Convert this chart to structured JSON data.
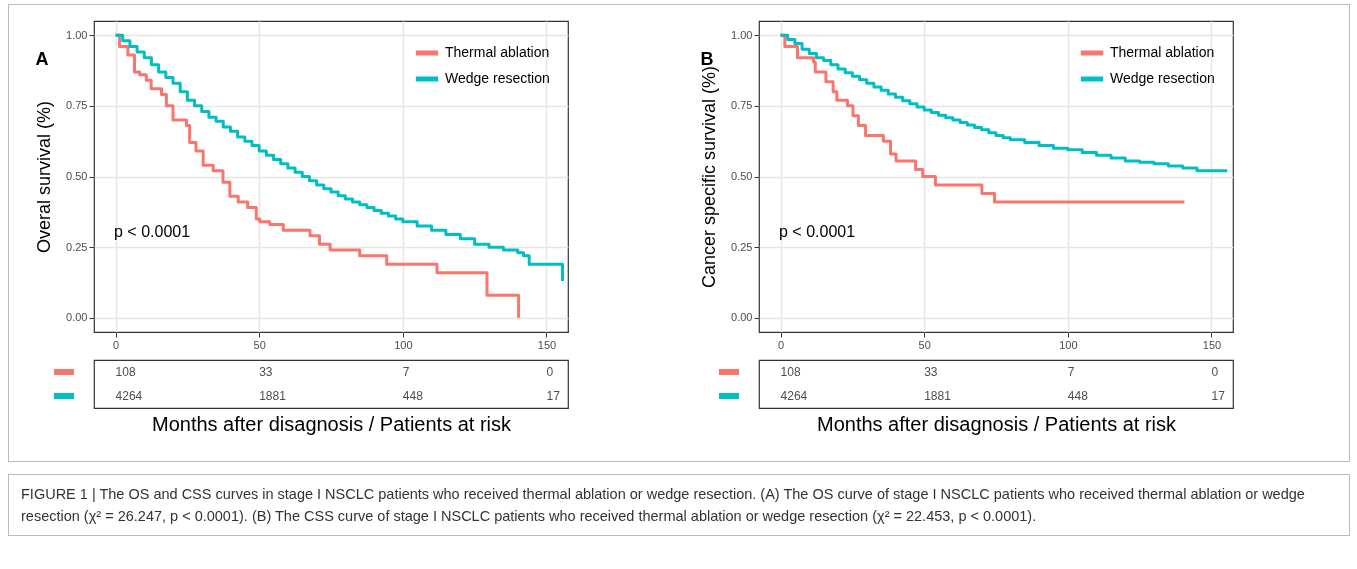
{
  "chart_data": [
    {
      "type": "step",
      "title": "A",
      "xlabel": "Months after disagnosis / Patients at risk",
      "ylabel": "Overal survival (%)",
      "xlim": [
        -7.5,
        157.5
      ],
      "ylim": [
        -0.05,
        1.05
      ],
      "xticks": [
        0,
        50,
        100,
        150
      ],
      "yticks": [
        {
          "value": 0,
          "label": "0.00"
        },
        {
          "value": 0.25,
          "label": "0.25"
        },
        {
          "value": 0.5,
          "label": "0.50"
        },
        {
          "value": 0.75,
          "label": "0.75"
        },
        {
          "value": 1,
          "label": "1.00"
        }
      ],
      "grid": true,
      "legend": "top right",
      "line_style": "solid",
      "series": [
        {
          "name": "Thermal ablation",
          "color": "#f8766d",
          "x": [
            0,
            1.4,
            4.3,
            6.6,
            8.4,
            10.7,
            12.4,
            16,
            17.7,
            20,
            24.7,
            25.8,
            28,
            30.5,
            34,
            37.4,
            39.8,
            42.7,
            46,
            49,
            50.2,
            53.7,
            58.4,
            67.7,
            71,
            74.7,
            85,
            94.4,
            111.9,
            129.3,
            140.3
          ],
          "values": [
            1,
            0.96,
            0.93,
            0.87,
            0.86,
            0.84,
            0.81,
            0.79,
            0.75,
            0.7,
            0.68,
            0.62,
            0.59,
            0.54,
            0.52,
            0.48,
            0.43,
            0.41,
            0.39,
            0.35,
            0.34,
            0.33,
            0.31,
            0.29,
            0.26,
            0.24,
            0.22,
            0.19,
            0.16,
            0.08,
            0
          ]
        },
        {
          "name": "Wedge resection",
          "color": "#00bfc4",
          "x": [
            0,
            2.5,
            5,
            7.5,
            10,
            12.5,
            15,
            17.5,
            20,
            22.5,
            25,
            27.5,
            30,
            32.5,
            35,
            37.5,
            40,
            42.5,
            45,
            47.5,
            50,
            52.5,
            55,
            57.5,
            60,
            62.5,
            65,
            67.5,
            70,
            72.5,
            75,
            77.5,
            80,
            82.5,
            85,
            87.5,
            90,
            92.5,
            95,
            97.5,
            100,
            105,
            110,
            115,
            120,
            125,
            130,
            135,
            140,
            142,
            144,
            150,
            155.5,
            155.6
          ],
          "values": [
            1,
            0.98,
            0.96,
            0.94,
            0.92,
            0.895,
            0.87,
            0.85,
            0.83,
            0.8,
            0.77,
            0.75,
            0.73,
            0.71,
            0.695,
            0.675,
            0.66,
            0.64,
            0.625,
            0.61,
            0.59,
            0.575,
            0.56,
            0.545,
            0.53,
            0.515,
            0.5,
            0.485,
            0.47,
            0.457,
            0.445,
            0.432,
            0.42,
            0.41,
            0.4,
            0.39,
            0.38,
            0.37,
            0.36,
            0.35,
            0.34,
            0.325,
            0.31,
            0.295,
            0.28,
            0.26,
            0.25,
            0.24,
            0.23,
            0.22,
            0.19,
            0.19,
            0.19,
            0.13
          ]
        }
      ],
      "annotations": [
        "p < 0.0001",
        "108",
        "33",
        "7",
        "0",
        "4264",
        "1881",
        "448",
        "17",
        "FIGURE 1 | The OS and CSS curves in stage I NSCLC patients who received thermal ablation or wedge resection. (A) The OS curve of stage I NSCLC patients who received thermal ablation or wedge resection (χ² = 26.247, p < 0.0001). (B) The CSS curve of stage I NSCLC patients who received thermal ablation or wedge resection (χ² = 22.453, p < 0.0001)."
      ]
    },
    {
      "type": "step",
      "title": "B",
      "xlabel": "Months after disagnosis / Patients at risk",
      "ylabel": "Cancer specific survival (%)",
      "xlim": [
        -7.5,
        157.5
      ],
      "ylim": [
        -0.05,
        1.05
      ],
      "xticks": [
        0,
        50,
        100,
        150
      ],
      "yticks": [
        {
          "value": 0,
          "label": "0.00"
        },
        {
          "value": 0.25,
          "label": "0.25"
        },
        {
          "value": 0.5,
          "label": "0.50"
        },
        {
          "value": 0.75,
          "label": "0.75"
        },
        {
          "value": 1,
          "label": "1.00"
        }
      ],
      "grid": true,
      "legend": "top right",
      "line_style": "solid",
      "series": [
        {
          "name": "Thermal ablation",
          "color": "#f8766d",
          "x": [
            0,
            1.5,
            5.9,
            11.5,
            12.1,
            15.8,
            18.3,
            19.6,
            23.3,
            25.2,
            27.1,
            29.6,
            35.8,
            38.3,
            40.2,
            47,
            49.5,
            53.9,
            70.1,
            74.5,
            140.6
          ],
          "values": [
            1,
            0.96,
            0.92,
            0.905,
            0.87,
            0.835,
            0.8,
            0.77,
            0.75,
            0.715,
            0.68,
            0.645,
            0.625,
            0.58,
            0.555,
            0.525,
            0.5,
            0.47,
            0.44,
            0.41,
            0.41
          ]
        },
        {
          "name": "Wedge resection",
          "color": "#00bfc4",
          "x": [
            0,
            2.5,
            5,
            7.5,
            10,
            12.5,
            15,
            17.5,
            20,
            22.5,
            25,
            27.5,
            30,
            32.5,
            35,
            37.5,
            40,
            42.5,
            45,
            47.5,
            50,
            52.5,
            55,
            57.5,
            60,
            62.5,
            65,
            67.5,
            70,
            72.5,
            75,
            77.5,
            80,
            85,
            90,
            95,
            100,
            105,
            110,
            115,
            120,
            125,
            130,
            135,
            140,
            145,
            150,
            155.5
          ],
          "values": [
            1,
            0.985,
            0.97,
            0.95,
            0.935,
            0.92,
            0.91,
            0.895,
            0.88,
            0.867,
            0.855,
            0.842,
            0.83,
            0.817,
            0.805,
            0.792,
            0.78,
            0.768,
            0.757,
            0.746,
            0.735,
            0.726,
            0.717,
            0.708,
            0.7,
            0.691,
            0.682,
            0.673,
            0.665,
            0.655,
            0.645,
            0.637,
            0.63,
            0.62,
            0.61,
            0.6,
            0.595,
            0.585,
            0.575,
            0.565,
            0.555,
            0.55,
            0.545,
            0.537,
            0.53,
            0.52,
            0.52,
            0.52
          ]
        }
      ],
      "annotations": [
        "p < 0.0001",
        "108",
        "33",
        "7",
        "0",
        "4264",
        "1881",
        "448",
        "17"
      ]
    }
  ]
}
